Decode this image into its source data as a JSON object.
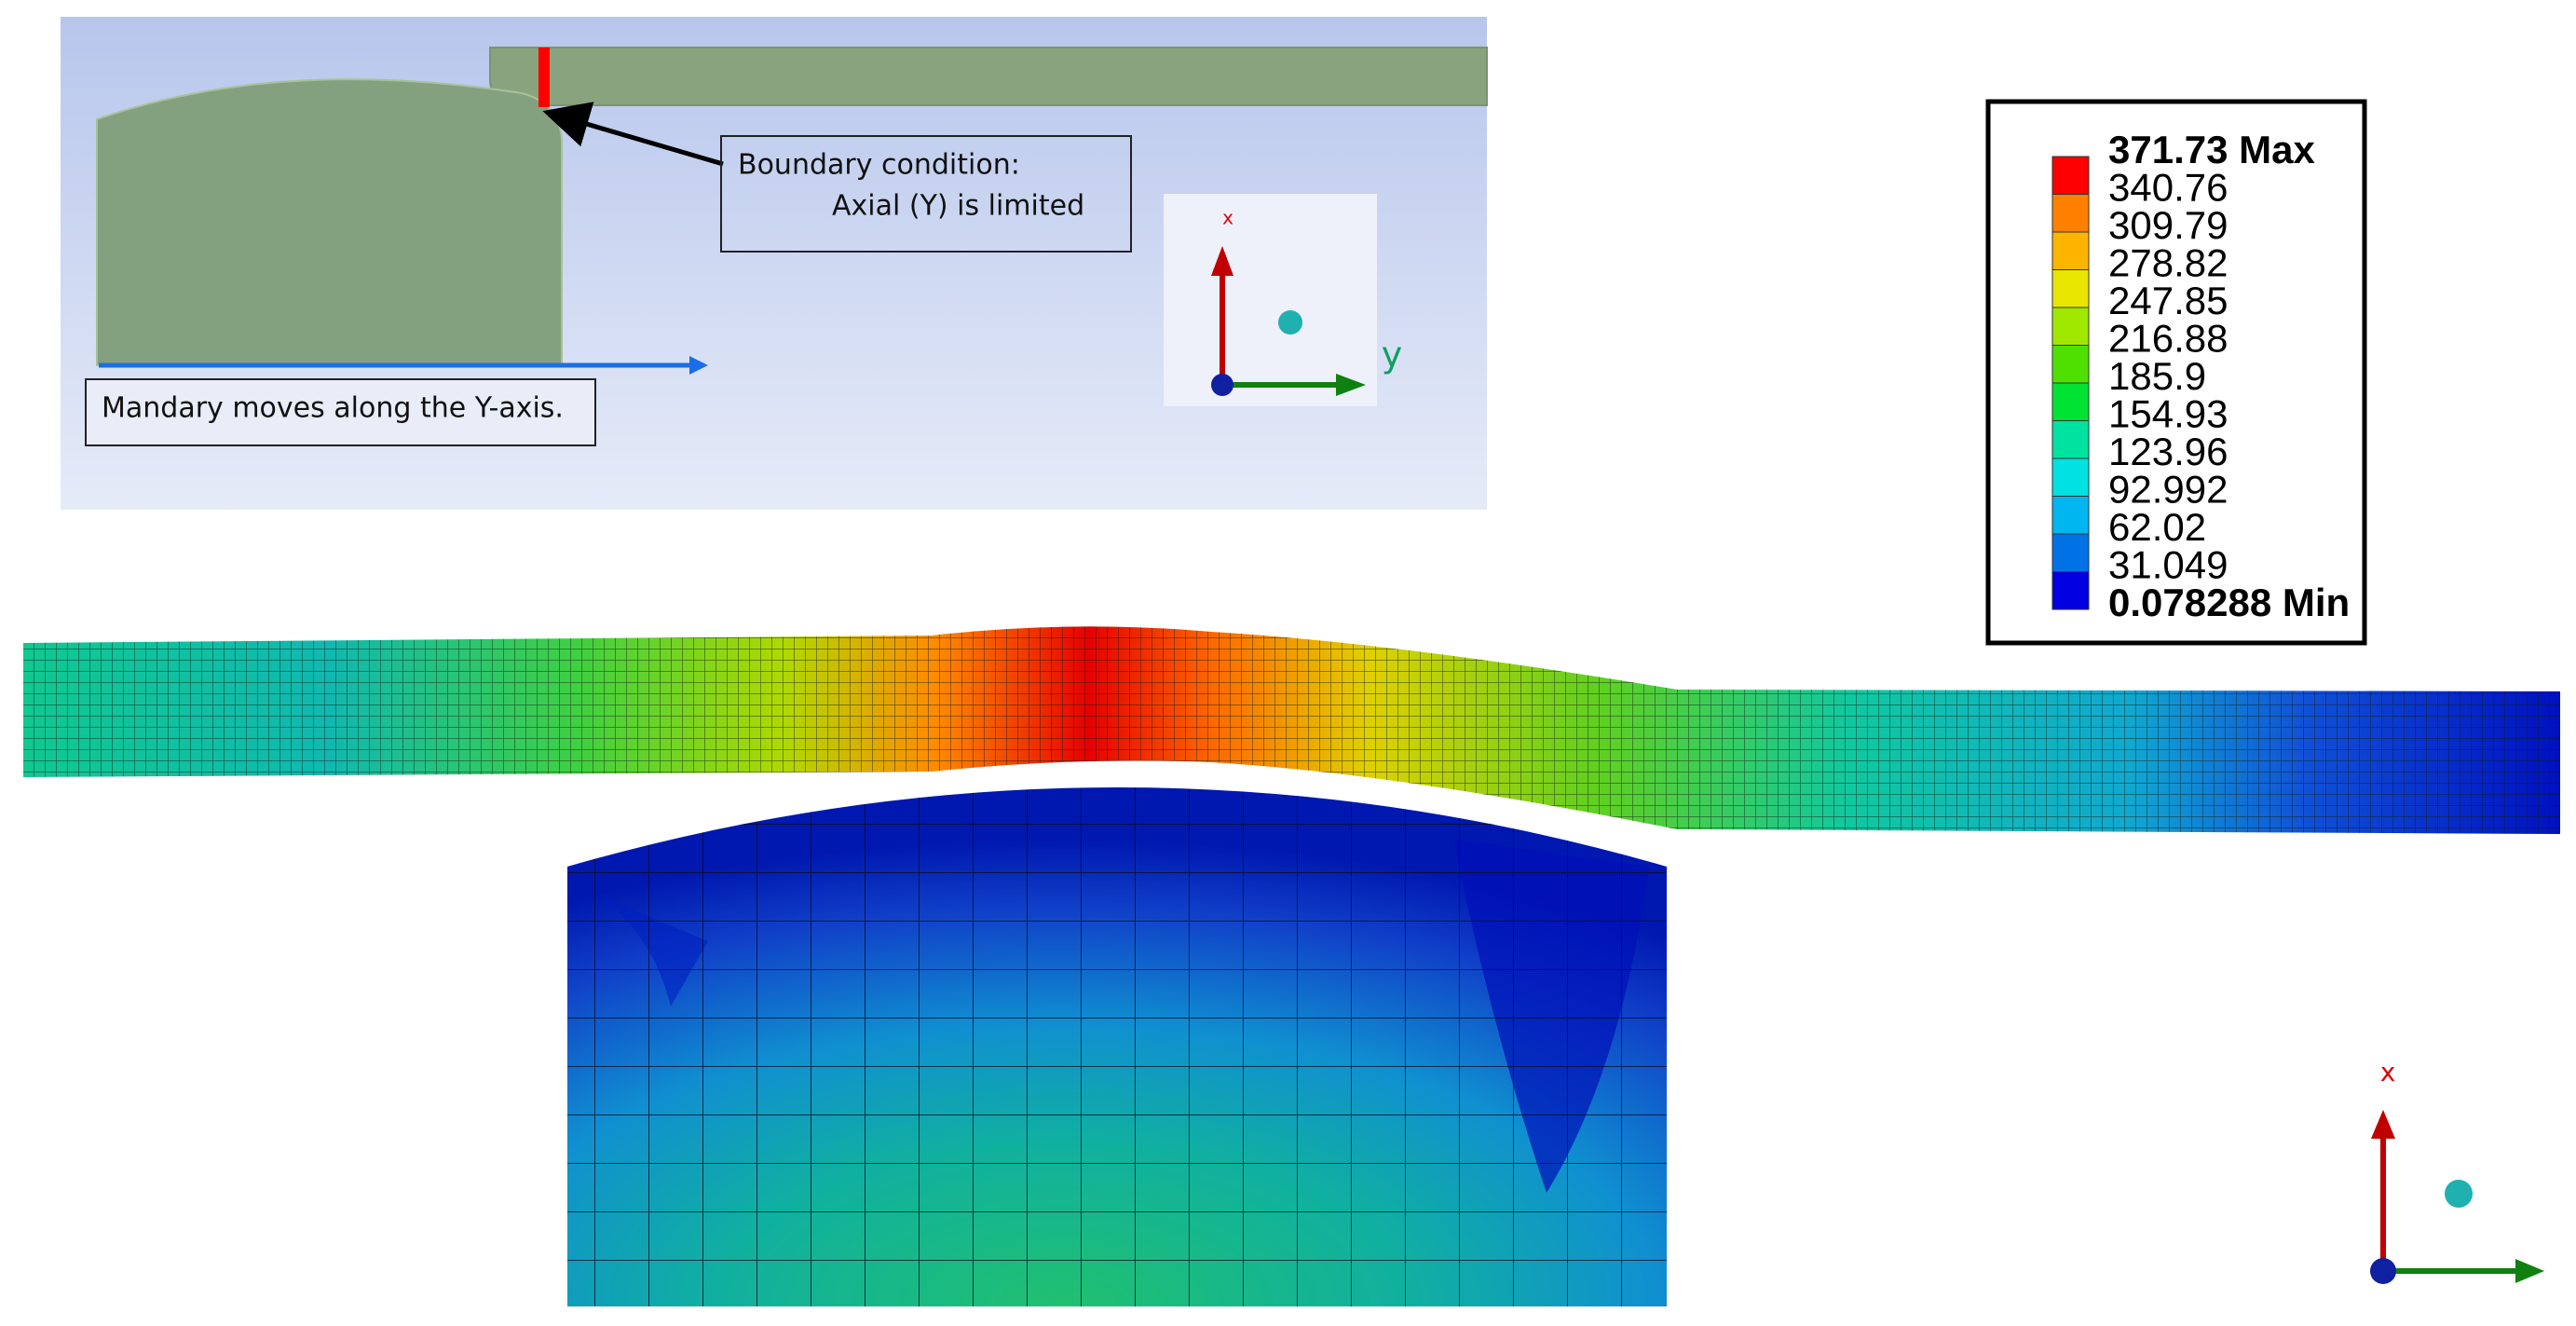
{
  "annotations": {
    "boundary_condition": [
      "Boundary condition:",
      "Axial (Y) is limited"
    ],
    "mandrel_motion": "Mandary moves along the Y-axis."
  },
  "top_triad": {
    "x_label": "x",
    "y_label": "y"
  },
  "legend": {
    "labels": [
      "371.73 Max",
      "340.76",
      "309.79",
      "278.82",
      "247.85",
      "216.88",
      "185.9",
      "154.93",
      "123.96",
      "92.992",
      "62.02",
      "31.049",
      "0.078288 Min"
    ],
    "colors": [
      "#ff0000",
      "#ff7f00",
      "#ffb400",
      "#e8e600",
      "#a0e800",
      "#4fe000",
      "#00e234",
      "#00e2a0",
      "#00e2e2",
      "#00b6f0",
      "#0072e6",
      "#0000e0"
    ]
  },
  "bottom_triad": {
    "x_label": "x"
  }
}
